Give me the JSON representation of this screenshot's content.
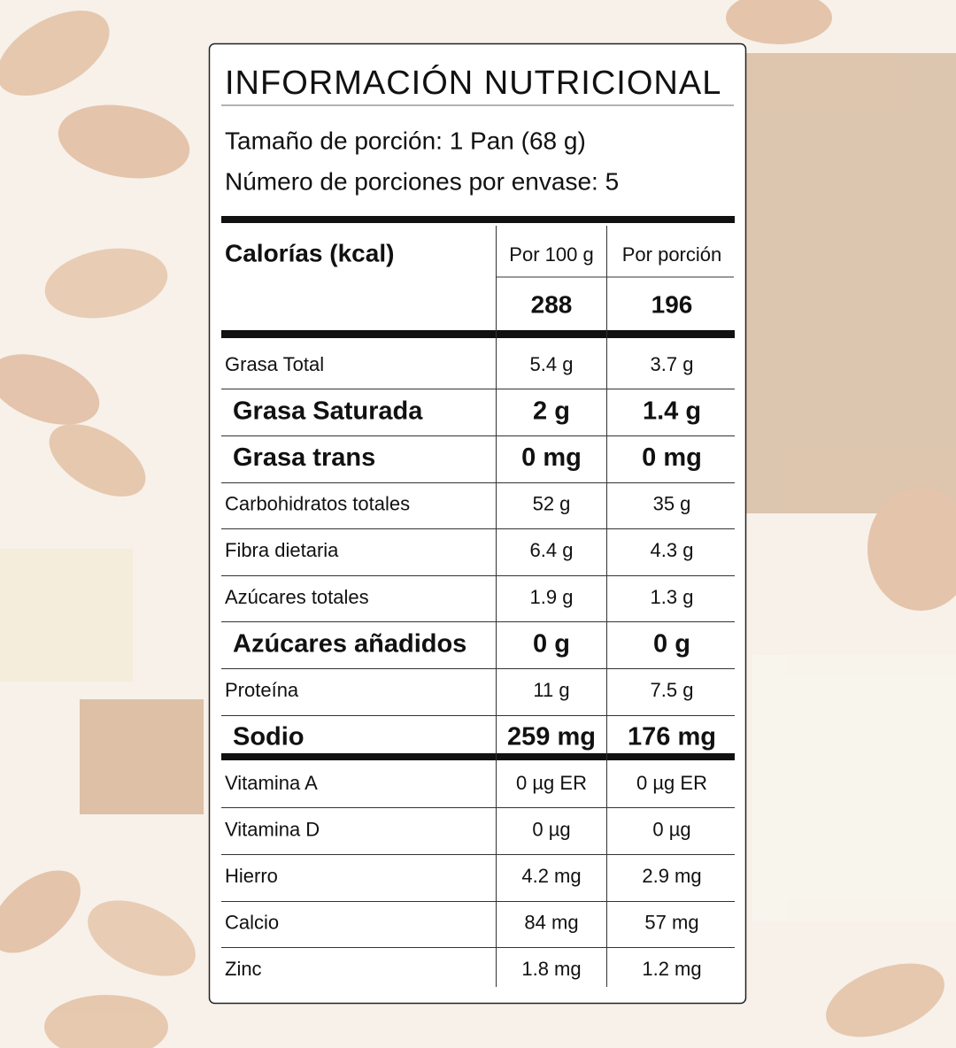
{
  "title": "INFORMACIÓN NUTRICIONAL",
  "serving_size": "Tamaño de porción: 1 Pan (68 g)",
  "servings_per_container": "Número de porciones por envase: 5",
  "calories": {
    "label": "Calorías (kcal)",
    "headers": [
      "Por 100 g",
      "Por porción"
    ],
    "values": [
      "288",
      "196"
    ]
  },
  "nutrients": [
    [
      "Grasa Total",
      "5.4 g",
      "3.7 g"
    ],
    [
      "Grasa Saturada",
      "2 g",
      "1.4 g"
    ],
    [
      "Grasa trans",
      "0 mg",
      "0 mg"
    ],
    [
      "Carbohidratos totales",
      "52  g",
      "35 g"
    ],
    [
      "Fibra dietaria",
      "6.4 g",
      "4.3 g"
    ],
    [
      "Azúcares totales",
      "1.9 g",
      "1.3 g"
    ],
    [
      "Azúcares añadidos",
      "0 g",
      "0 g"
    ],
    [
      "Proteína",
      "11 g",
      "7.5 g"
    ],
    [
      "Sodio",
      "259 mg",
      "176 mg"
    ]
  ],
  "micronutrients": [
    [
      "Vitamina A",
      "0 µg ER",
      "0 µg ER"
    ],
    [
      "Vitamina D",
      "0 µg",
      "0 µg"
    ],
    [
      "Hierro",
      "4.2 mg",
      "2.9 mg"
    ],
    [
      "Calcio",
      "84 mg",
      "57 mg"
    ],
    [
      "Zinc",
      "1.8 mg",
      "1.2 mg"
    ]
  ]
}
